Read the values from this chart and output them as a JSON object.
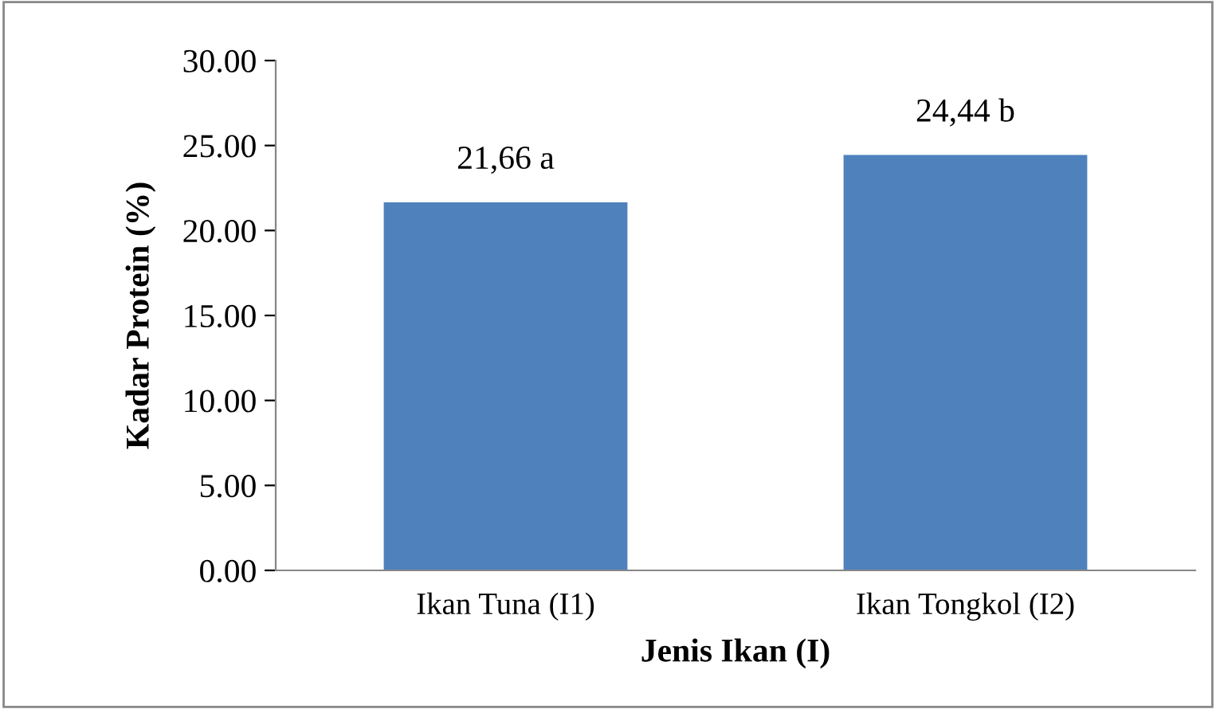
{
  "chart_data": {
    "type": "bar",
    "xlabel": "Jenis Ikan (I)",
    "ylabel": "Kadar Protein (%)",
    "categories": [
      "Ikan Tuna (I1)",
      "Ikan Tongkol (I2)"
    ],
    "values": [
      21.66,
      24.44
    ],
    "value_labels": [
      "21,66 a",
      "24,44 b"
    ],
    "color": "#4f81bd",
    "ylim": [
      0,
      30
    ],
    "yticks": [
      {
        "value": 0,
        "label": "0.00"
      },
      {
        "value": 5,
        "label": "5.00"
      },
      {
        "value": 10,
        "label": "10.00"
      },
      {
        "value": 15,
        "label": "15.00"
      },
      {
        "value": 20,
        "label": "20.00"
      },
      {
        "value": 25,
        "label": "25.00"
      },
      {
        "value": 30,
        "label": "30.00"
      }
    ],
    "grid": false,
    "legend": false
  }
}
